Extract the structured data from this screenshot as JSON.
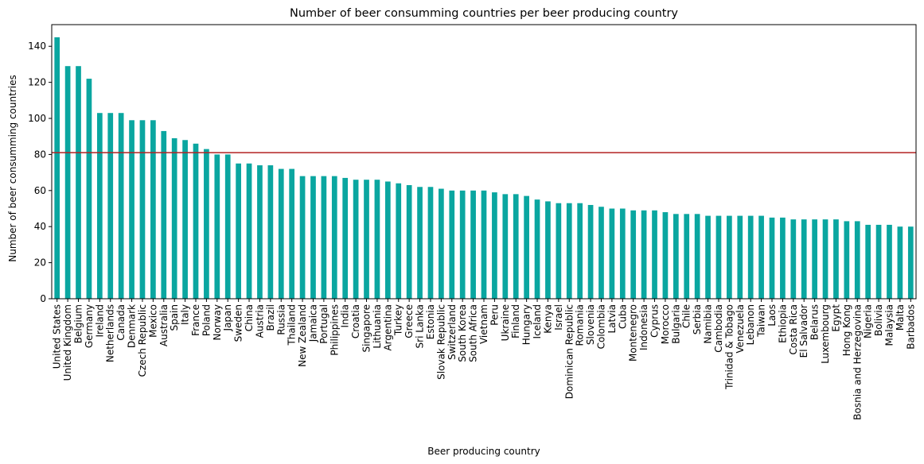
{
  "chart_data": {
    "type": "bar",
    "title": "Number of beer consumming countries per beer producing country",
    "xlabel": "Beer producing country",
    "ylabel": "Number of beer consumming countries",
    "ylim": [
      0,
      152
    ],
    "yticks": [
      0,
      20,
      40,
      60,
      80,
      100,
      120,
      140
    ],
    "bar_color": "#0aa6a0",
    "reference_line": {
      "y": 81,
      "color": "#b22222"
    },
    "grid": false,
    "categories": [
      "United States",
      "United Kingdom",
      "Belgium",
      "Germany",
      "Ireland",
      "Netherlands",
      "Canada",
      "Denmark",
      "Czech Republic",
      "Mexico",
      "Australia",
      "Spain",
      "Italy",
      "France",
      "Poland",
      "Norway",
      "Japan",
      "Sweden",
      "China",
      "Austria",
      "Brazil",
      "Russia",
      "Thailand",
      "New Zealand",
      "Jamaica",
      "Portugal",
      "Philippines",
      "India",
      "Croatia",
      "Singapore",
      "Lithuania",
      "Argentina",
      "Turkey",
      "Greece",
      "Sri Lanka",
      "Estonia",
      "Slovak Republic",
      "Switzerland",
      "South Korea",
      "South Africa",
      "Vietnam",
      "Peru",
      "Ukraine",
      "Finland",
      "Hungary",
      "Iceland",
      "Kenya",
      "Israel",
      "Dominican Republic",
      "Romania",
      "Slovenia",
      "Colombia",
      "Latvia",
      "Cuba",
      "Montenegro",
      "Indonesia",
      "Cyprus",
      "Morocco",
      "Bulgaria",
      "Chile",
      "Serbia",
      "Namibia",
      "Cambodia",
      "Trinidad & Tobago",
      "Venezuela",
      "Lebanon",
      "Taiwan",
      "Laos",
      "Ethiopia",
      "Costa Rica",
      "El Salvador",
      "Belarus",
      "Luxembourg",
      "Egypt",
      "Hong Kong",
      "Bosnia and Herzegovina",
      "Nigeria",
      "Bolivia",
      "Malaysia",
      "Malta",
      "Barbados"
    ],
    "values": [
      145,
      129,
      129,
      122,
      103,
      103,
      103,
      99,
      99,
      99,
      93,
      89,
      88,
      86,
      83,
      80,
      80,
      75,
      75,
      74,
      74,
      72,
      72,
      68,
      68,
      68,
      68,
      67,
      66,
      66,
      66,
      65,
      64,
      63,
      62,
      62,
      61,
      60,
      60,
      60,
      60,
      59,
      58,
      58,
      57,
      55,
      54,
      53,
      53,
      53,
      52,
      51,
      50,
      50,
      49,
      49,
      49,
      48,
      47,
      47,
      47,
      46,
      46,
      46,
      46,
      46,
      46,
      45,
      45,
      44,
      44,
      44,
      44,
      44,
      43,
      43,
      41,
      41,
      41,
      40,
      40
    ]
  }
}
